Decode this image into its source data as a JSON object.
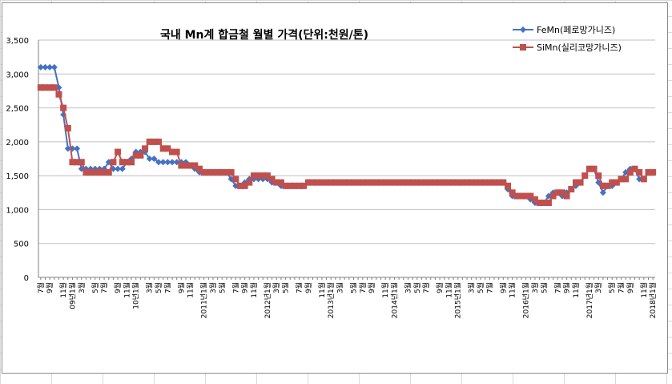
{
  "chart_data": {
    "type": "line",
    "title": "국내 Mn계 합금철 월별  가격(단위:천원/톤)",
    "ylim": [
      0,
      3500
    ],
    "yticks": [
      "0",
      "500",
      "1,000",
      "1,500",
      "2,000",
      "2,500",
      "3,000",
      "3,500"
    ],
    "legend_position": "top-right",
    "grid": "horizontal",
    "x_tick_labels": [
      "7월",
      "9월",
      "11월",
      "09년1월",
      "3월",
      "5월",
      "7월",
      "9월",
      "11월",
      "10년1월",
      "3월",
      "5월",
      "7월",
      "9월",
      "11월",
      "2011년1월",
      "3월",
      "5월",
      "7월",
      "9월",
      "11월",
      "2012년1월",
      "3월",
      "5월",
      "7월",
      "9월",
      "11월",
      "2013년1월",
      "3월",
      "5월",
      "7월",
      "9월",
      "11월",
      "2014년1월",
      "3월",
      "5월",
      "7월",
      "9월",
      "11월",
      "2015년1월",
      "3월",
      "5월",
      "7월",
      "9월",
      "11월",
      "2016년1월",
      "3월",
      "5월",
      "7월",
      "9월",
      "11월",
      "2017년1월",
      "3월",
      "5월",
      "7월",
      "9월",
      "11월",
      "2018년1월"
    ],
    "series": [
      {
        "name": "FeMn(페로망가니즈)",
        "color": "#4472c4",
        "marker": "diamond",
        "values": [
          3100,
          3100,
          3100,
          3100,
          2800,
          2400,
          1900,
          1900,
          1900,
          1600,
          1600,
          1600,
          1600,
          1600,
          1600,
          1700,
          1600,
          1600,
          1600,
          1700,
          1750,
          1850,
          1850,
          1850,
          1750,
          1750,
          1700,
          1700,
          1700,
          1700,
          1700,
          1700,
          1700,
          1650,
          1600,
          1550,
          1550,
          1550,
          1550,
          1550,
          1550,
          1550,
          1450,
          1350,
          1350,
          1400,
          1450,
          1450,
          1450,
          1450,
          1450,
          1400,
          1400,
          1350,
          1350,
          1350,
          1350,
          1350,
          1350,
          1400,
          1400,
          1400,
          1400,
          1400,
          1400,
          1400,
          1400,
          1400,
          1400,
          1400,
          1400,
          1400,
          1400,
          1400,
          1400,
          1400,
          1400,
          1400,
          1400,
          1400,
          1400,
          1400,
          1400,
          1400,
          1400,
          1400,
          1400,
          1400,
          1400,
          1400,
          1400,
          1400,
          1400,
          1400,
          1400,
          1400,
          1400,
          1400,
          1400,
          1400,
          1400,
          1400,
          1400,
          1300,
          1200,
          1200,
          1200,
          1200,
          1150,
          1100,
          1100,
          1100,
          1200,
          1250,
          1250,
          1200,
          1250,
          1300,
          1350,
          1400,
          1500,
          1600,
          1600,
          1400,
          1250,
          1350,
          1350,
          1400,
          1450,
          1550,
          1600,
          1600,
          1450,
          1450,
          1550,
          1550
        ]
      },
      {
        "name": "SiMn(실리코망가니즈)",
        "color": "#c0504d",
        "marker": "square",
        "values": [
          2800,
          2800,
          2800,
          2800,
          2700,
          2500,
          2200,
          1700,
          1700,
          1700,
          1550,
          1550,
          1550,
          1550,
          1550,
          1550,
          1700,
          1850,
          1700,
          1700,
          1700,
          1800,
          1800,
          1900,
          2000,
          2000,
          2000,
          1900,
          1900,
          1850,
          1850,
          1650,
          1650,
          1650,
          1650,
          1600,
          1550,
          1550,
          1550,
          1550,
          1550,
          1550,
          1550,
          1450,
          1350,
          1350,
          1400,
          1500,
          1500,
          1500,
          1500,
          1450,
          1400,
          1400,
          1350,
          1350,
          1350,
          1350,
          1350,
          1400,
          1400,
          1400,
          1400,
          1400,
          1400,
          1400,
          1400,
          1400,
          1400,
          1400,
          1400,
          1400,
          1400,
          1400,
          1400,
          1400,
          1400,
          1400,
          1400,
          1400,
          1400,
          1400,
          1400,
          1400,
          1400,
          1400,
          1400,
          1400,
          1400,
          1400,
          1400,
          1400,
          1400,
          1400,
          1400,
          1400,
          1400,
          1400,
          1400,
          1400,
          1400,
          1400,
          1400,
          1350,
          1250,
          1200,
          1200,
          1200,
          1200,
          1150,
          1100,
          1100,
          1100,
          1200,
          1250,
          1250,
          1200,
          1300,
          1400,
          1400,
          1500,
          1600,
          1600,
          1500,
          1350,
          1350,
          1400,
          1400,
          1450,
          1450,
          1550,
          1600,
          1550,
          1450,
          1550,
          1550
        ]
      }
    ]
  }
}
